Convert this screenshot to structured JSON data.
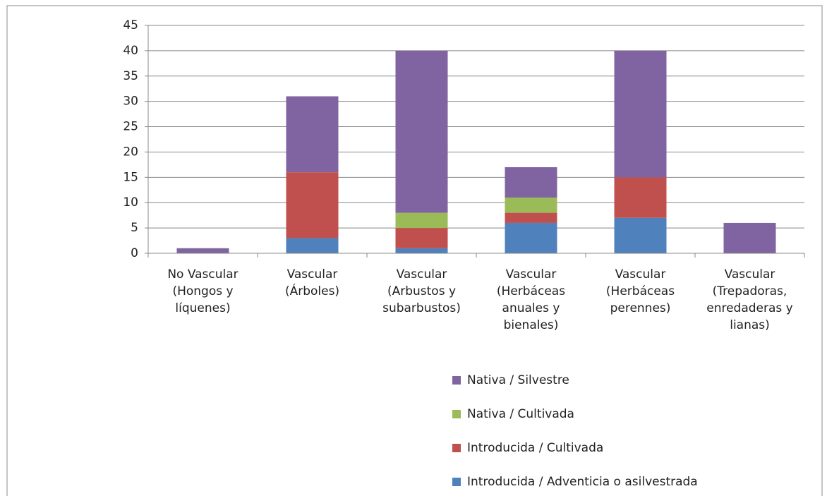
{
  "chart_data": {
    "type": "stacked_bar",
    "categories": [
      "No Vascular (Hongos y líquenes)",
      "Vascular (Árboles)",
      "Vascular (Arbustos y subarbustos)",
      "Vascular (Herbáceas anuales y bienales)",
      "Vascular (Herbáceas perennes)",
      "Vascular (Trepadoras, enredaderas y lianas)"
    ],
    "series": [
      {
        "name": "Introducida / Adventicia o asilvestrada",
        "color": "#4f81bd",
        "values": [
          0,
          3,
          1,
          6,
          7,
          0
        ]
      },
      {
        "name": "Introducida / Cultivada",
        "color": "#c0504d",
        "values": [
          0,
          13,
          4,
          2,
          8,
          0
        ]
      },
      {
        "name": "Nativa / Cultivada",
        "color": "#9bbb59",
        "values": [
          0,
          0,
          3,
          3,
          0,
          0
        ]
      },
      {
        "name": "Nativa / Silvestre",
        "color": "#8064a2",
        "values": [
          1,
          15,
          32,
          6,
          25,
          6
        ]
      }
    ],
    "ylim": [
      0,
      45
    ],
    "yticks": [
      0,
      5,
      10,
      15,
      20,
      25,
      30,
      35,
      40,
      45
    ],
    "grid": true,
    "legend": "bottom"
  }
}
